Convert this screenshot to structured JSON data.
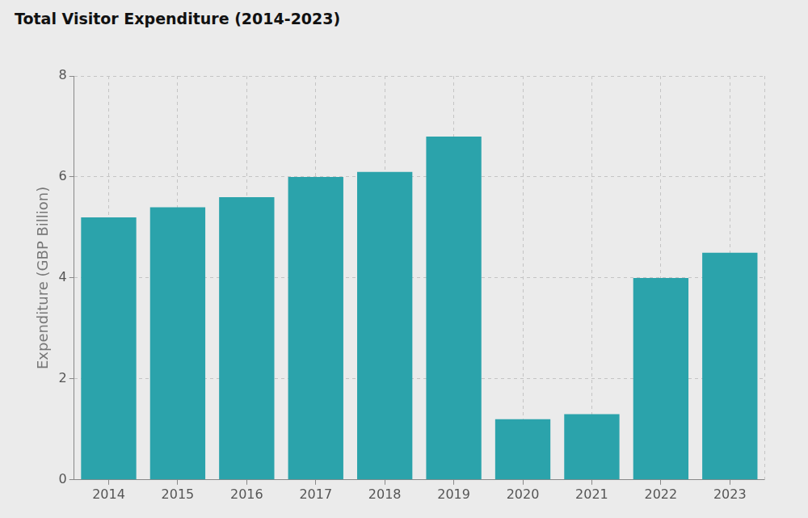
{
  "chart_data": {
    "type": "bar",
    "title": "Total Visitor Expenditure (2014-2023)",
    "y_label": "Expenditure (GBP Billion)",
    "categories": [
      "2014",
      "2015",
      "2016",
      "2017",
      "2018",
      "2019",
      "2020",
      "2021",
      "2022",
      "2023"
    ],
    "values": [
      5.2,
      5.4,
      5.6,
      6.0,
      6.1,
      6.8,
      1.2,
      1.3,
      4.0,
      4.5
    ],
    "color": "#2ba3ab",
    "ylim": [
      0,
      8
    ],
    "yticks": [
      0,
      2,
      4,
      6,
      8
    ],
    "grid": true
  }
}
